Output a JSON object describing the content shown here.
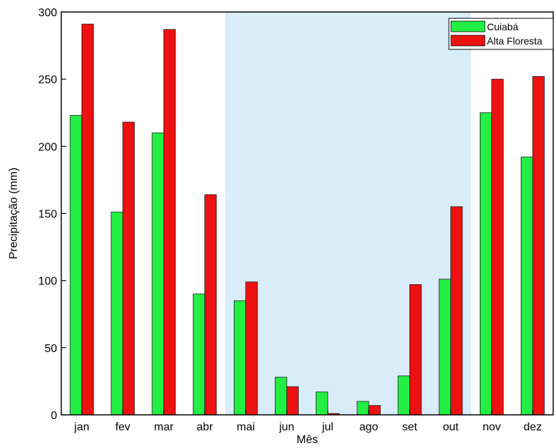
{
  "chart_data": {
    "type": "bar",
    "title": "",
    "xlabel": "Mês",
    "ylabel": "Precipitação (mm)",
    "ylim": [
      0,
      300
    ],
    "yticks": [
      0,
      50,
      100,
      150,
      200,
      250,
      300
    ],
    "categories": [
      "jan",
      "fev",
      "mar",
      "abr",
      "mai",
      "jun",
      "jul",
      "ago",
      "set",
      "out",
      "nov",
      "dez"
    ],
    "series": [
      {
        "name": "Cuiabá",
        "color": "#22ee44",
        "values": [
          223,
          151,
          210,
          90,
          85,
          28,
          17,
          10,
          29,
          101,
          225,
          192
        ]
      },
      {
        "name": "Alta Floresta",
        "color": "#ee1111",
        "values": [
          291,
          218,
          287,
          164,
          99,
          21,
          1,
          7,
          97,
          155,
          250,
          252
        ]
      }
    ],
    "shaded_region": {
      "from_category": "mai",
      "to_category": "out",
      "color": "#d9ecf9"
    },
    "legend": "top-right",
    "grid": false
  }
}
